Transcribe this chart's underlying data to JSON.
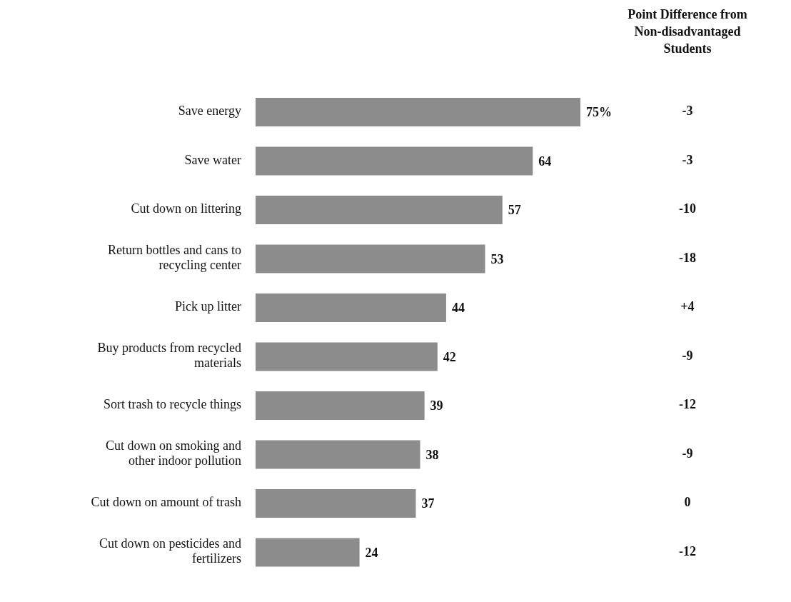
{
  "chart_data": {
    "type": "bar",
    "orientation": "horizontal",
    "categories": [
      "Save energy",
      "Save water",
      "Cut down on littering",
      "Return bottles and cans to recycling center",
      "Pick up litter",
      "Buy products from recycled materials",
      "Sort trash to recycle things",
      "Cut down on smoking and other indoor pollution",
      "Cut down on amount of trash",
      "Cut down on pesticides and fertilizers"
    ],
    "values": [
      75,
      64,
      57,
      53,
      44,
      42,
      39,
      38,
      37,
      24
    ],
    "value_labels": [
      "75%",
      "64",
      "57",
      "53",
      "44",
      "42",
      "39",
      "38",
      "37",
      "24"
    ],
    "color": "#8c8c8c",
    "annotations": [
      "Point Difference from Non-disadvantaged Students",
      "-3",
      "-3",
      "-10",
      "-18",
      "+4",
      "-9",
      "-12",
      "-9",
      "0",
      "-12"
    ],
    "grid": false,
    "legend": false
  }
}
